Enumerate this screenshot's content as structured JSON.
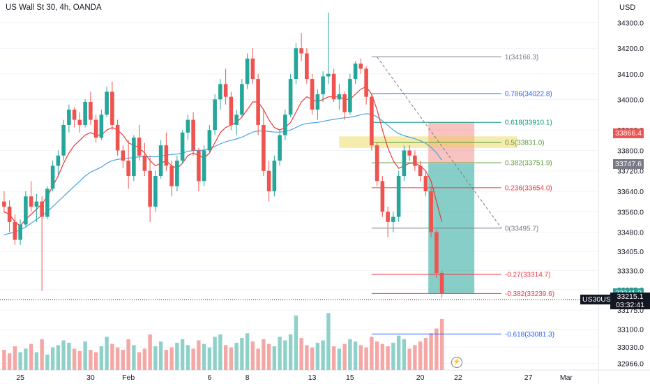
{
  "header": {
    "title": "US Wall St 30, 4h, OANDA",
    "currency": "USD"
  },
  "colors": {
    "up": "#26a69a",
    "down": "#ef5350",
    "vol_up": "#8fd1c9",
    "vol_down": "#f4a7a5",
    "ema_fast": "#e53935",
    "ema_slow": "#4aa3df",
    "fib_gray": "#787b86",
    "fib_blue": "#2962ff",
    "fib_teal": "#089981",
    "fib_red": "#f23645",
    "fib_olive": "#5b9c3c",
    "fib_yellow": "#e6d34a",
    "target_zone": "#26a69a",
    "stop_zone": "#ef5350"
  },
  "y_axis": {
    "ticks": [
      "34300.0",
      "34200.0",
      "34100.0",
      "34000.0",
      "33880.0",
      "33800.0",
      "33720.0",
      "33640.0",
      "33560.0",
      "33480.0",
      "33405.0",
      "33330.0",
      "33255.0",
      "33175.0",
      "33100.0",
      "33030.0",
      "32966.0"
    ]
  },
  "x_axis": {
    "ticks": [
      "25",
      "30",
      "Feb",
      "6",
      "8",
      "13",
      "15",
      "20",
      "22",
      "27",
      "Mar"
    ]
  },
  "price_tags": {
    "stop": "33866.4",
    "entry": "33747.6",
    "last": "33241.3",
    "symbol": "US30USD",
    "current": "33215.1",
    "countdown": "03:32:41"
  },
  "fib_levels": [
    {
      "ratio": "1",
      "value": "34166.3",
      "text": "1(34166.3)",
      "color": "gray"
    },
    {
      "ratio": "0.786",
      "value": "34022.8",
      "text": "0.786(34022.8)",
      "color": "blue"
    },
    {
      "ratio": "0.618",
      "value": "33910.1",
      "text": "0.618(33910.1)",
      "color": "teal"
    },
    {
      "ratio": "0.5",
      "value": "33831.0",
      "text": "0.5(33831.0)",
      "color": "olive"
    },
    {
      "ratio": "0.382",
      "value": "33751.9",
      "text": "0.382(33751.9)",
      "color": "olive"
    },
    {
      "ratio": "0.236",
      "value": "33654.0",
      "text": "0.236(33654.0)",
      "color": "red"
    },
    {
      "ratio": "0",
      "value": "33495.7",
      "text": "0(33495.7)",
      "color": "gray"
    },
    {
      "ratio": "-0.27",
      "value": "33314.7",
      "text": "-0.27(33314.7)",
      "color": "red"
    },
    {
      "ratio": "-0.382",
      "value": "33239.6",
      "text": "-0.382(33239.6)",
      "color": "red"
    },
    {
      "ratio": "-0.618",
      "value": "33081.3",
      "text": "-0.618(33081.3)",
      "color": "blue"
    }
  ],
  "chart_data": {
    "type": "candlestick",
    "title": "US Wall St 30, 4h, OANDA",
    "ylabel": "USD",
    "ylim": [
      32940,
      34340
    ],
    "candles_ohlc": [
      [
        33600,
        33640,
        33555,
        33580
      ],
      [
        33580,
        33605,
        33480,
        33520
      ],
      [
        33520,
        33550,
        33430,
        33450
      ],
      [
        33450,
        33530,
        33430,
        33510
      ],
      [
        33510,
        33640,
        33500,
        33620
      ],
      [
        33620,
        33680,
        33560,
        33580
      ],
      [
        33580,
        33630,
        33520,
        33600
      ],
      [
        33600,
        33620,
        33250,
        33540
      ],
      [
        33540,
        33660,
        33530,
        33650
      ],
      [
        33650,
        33760,
        33640,
        33740
      ],
      [
        33740,
        33800,
        33700,
        33780
      ],
      [
        33780,
        33920,
        33760,
        33900
      ],
      [
        33900,
        33980,
        33870,
        33960
      ],
      [
        33960,
        33970,
        33890,
        33920
      ],
      [
        33920,
        33950,
        33870,
        33900
      ],
      [
        33900,
        34000,
        33890,
        33990
      ],
      [
        33990,
        34030,
        33900,
        33920
      ],
      [
        33920,
        33940,
        33830,
        33850
      ],
      [
        33850,
        33960,
        33840,
        33940
      ],
      [
        33940,
        34050,
        33930,
        34030
      ],
      [
        34030,
        34070,
        33880,
        33900
      ],
      [
        33900,
        33920,
        33780,
        33800
      ],
      [
        33800,
        33820,
        33730,
        33760
      ],
      [
        33760,
        33840,
        33650,
        33700
      ],
      [
        33700,
        33860,
        33680,
        33850
      ],
      [
        33850,
        33900,
        33760,
        33780
      ],
      [
        33780,
        33830,
        33700,
        33720
      ],
      [
        33720,
        33780,
        33520,
        33580
      ],
      [
        33580,
        33720,
        33560,
        33700
      ],
      [
        33700,
        33840,
        33690,
        33820
      ],
      [
        33820,
        33870,
        33720,
        33740
      ],
      [
        33740,
        33760,
        33620,
        33660
      ],
      [
        33660,
        33780,
        33640,
        33760
      ],
      [
        33760,
        33880,
        33750,
        33870
      ],
      [
        33870,
        33940,
        33840,
        33920
      ],
      [
        33920,
        33950,
        33780,
        33800
      ],
      [
        33800,
        33810,
        33640,
        33680
      ],
      [
        33680,
        33820,
        33660,
        33800
      ],
      [
        33800,
        33900,
        33790,
        33880
      ],
      [
        33880,
        34020,
        33860,
        34000
      ],
      [
        34000,
        34080,
        33960,
        34060
      ],
      [
        34060,
        34120,
        33980,
        34010
      ],
      [
        34010,
        34030,
        33880,
        33900
      ],
      [
        33900,
        33960,
        33860,
        33940
      ],
      [
        33940,
        34080,
        33930,
        34060
      ],
      [
        34060,
        34180,
        34040,
        34160
      ],
      [
        34160,
        34200,
        34060,
        34080
      ],
      [
        34080,
        34100,
        33860,
        33900
      ],
      [
        33900,
        33960,
        33700,
        33720
      ],
      [
        33720,
        33760,
        33600,
        33640
      ],
      [
        33640,
        33780,
        33620,
        33760
      ],
      [
        33760,
        33880,
        33740,
        33860
      ],
      [
        33860,
        33960,
        33840,
        33940
      ],
      [
        33940,
        34100,
        33930,
        34080
      ],
      [
        34080,
        34220,
        34060,
        34200
      ],
      [
        34200,
        34260,
        34150,
        34180
      ],
      [
        34180,
        34200,
        34060,
        34080
      ],
      [
        34080,
        34100,
        33940,
        33960
      ],
      [
        33960,
        34040,
        33920,
        34020
      ],
      [
        34020,
        34110,
        33990,
        34090
      ],
      [
        34090,
        34340,
        34060,
        34100
      ],
      [
        34100,
        34120,
        33990,
        34000
      ],
      [
        34000,
        34060,
        33960,
        34020
      ],
      [
        34020,
        34030,
        33920,
        33950
      ],
      [
        33950,
        34100,
        33940,
        34080
      ],
      [
        34080,
        34150,
        34060,
        34140
      ],
      [
        34140,
        34160,
        34100,
        34120
      ],
      [
        34120,
        34130,
        33980,
        34010
      ],
      [
        34010,
        34020,
        33800,
        33820
      ],
      [
        33820,
        33830,
        33660,
        33680
      ],
      [
        33680,
        33700,
        33540,
        33560
      ],
      [
        33560,
        33580,
        33460,
        33520
      ],
      [
        33520,
        33560,
        33480,
        33540
      ],
      [
        33540,
        33720,
        33520,
        33700
      ],
      [
        33700,
        33820,
        33680,
        33800
      ],
      [
        33800,
        33820,
        33760,
        33780
      ],
      [
        33780,
        33800,
        33720,
        33740
      ],
      [
        33740,
        33760,
        33680,
        33700
      ],
      [
        33700,
        33720,
        33620,
        33640
      ],
      [
        33640,
        33660,
        33460,
        33480
      ],
      [
        33480,
        33490,
        33300,
        33320
      ],
      [
        33320,
        33330,
        33225,
        33241
      ]
    ],
    "volume": [
      34,
      28,
      40,
      30,
      36,
      44,
      30,
      52,
      26,
      38,
      42,
      50,
      46,
      36,
      32,
      48,
      34,
      30,
      40,
      56,
      44,
      38,
      34,
      52,
      42,
      30,
      36,
      60,
      40,
      48,
      34,
      38,
      46,
      52,
      42,
      36,
      50,
      44,
      38,
      56,
      60,
      42,
      38,
      46,
      54,
      62,
      48,
      36,
      52,
      44,
      40,
      56,
      50,
      60,
      92,
      54,
      42,
      38,
      46,
      50,
      96,
      40,
      36,
      44,
      52,
      48,
      42,
      38,
      56,
      48,
      44,
      40,
      46,
      58,
      52,
      36,
      42,
      48,
      54,
      62,
      70,
      86
    ],
    "ema_fast": [
      33560,
      33550,
      33520,
      33505,
      33530,
      33550,
      33570,
      33590,
      33620,
      33660,
      33700,
      33750,
      33790,
      33820,
      33840,
      33860,
      33870,
      33860,
      33860,
      33880,
      33890,
      33880,
      33860,
      33830,
      33820,
      33810,
      33790,
      33760,
      33740,
      33750,
      33760,
      33740,
      33730,
      33750,
      33780,
      33790,
      33780,
      33770,
      33790,
      33830,
      33870,
      33890,
      33900,
      33910,
      33930,
      33960,
      33990,
      33990,
      33960,
      33920,
      33890,
      33880,
      33890,
      33910,
      33950,
      33990,
      34010,
      34000,
      33990,
      34000,
      34010,
      34010,
      34010,
      34000,
      34000,
      34020,
      34040,
      34050,
      34020,
      33960,
      33880,
      33810,
      33760,
      33730,
      33740,
      33750,
      33750,
      33740,
      33720,
      33680,
      33600,
      33520
    ],
    "ema_slow": [
      33470,
      33475,
      33480,
      33490,
      33500,
      33515,
      33530,
      33545,
      33560,
      33580,
      33600,
      33620,
      33640,
      33660,
      33680,
      33700,
      33715,
      33725,
      33735,
      33750,
      33760,
      33765,
      33768,
      33770,
      33772,
      33775,
      33776,
      33776,
      33775,
      33778,
      33782,
      33784,
      33786,
      33790,
      33796,
      33800,
      33800,
      33802,
      33808,
      33816,
      33826,
      33834,
      33840,
      33845,
      33852,
      33862,
      33872,
      33876,
      33876,
      33874,
      33872,
      33872,
      33874,
      33880,
      33890,
      33900,
      33906,
      33908,
      33910,
      33914,
      33918,
      33922,
      33925,
      33928,
      33930,
      33934,
      33940,
      33944,
      33942,
      33932,
      33916,
      33898,
      33880,
      33866,
      33858,
      33852,
      33846,
      33838,
      33828,
      33812,
      33790,
      33762
    ]
  }
}
